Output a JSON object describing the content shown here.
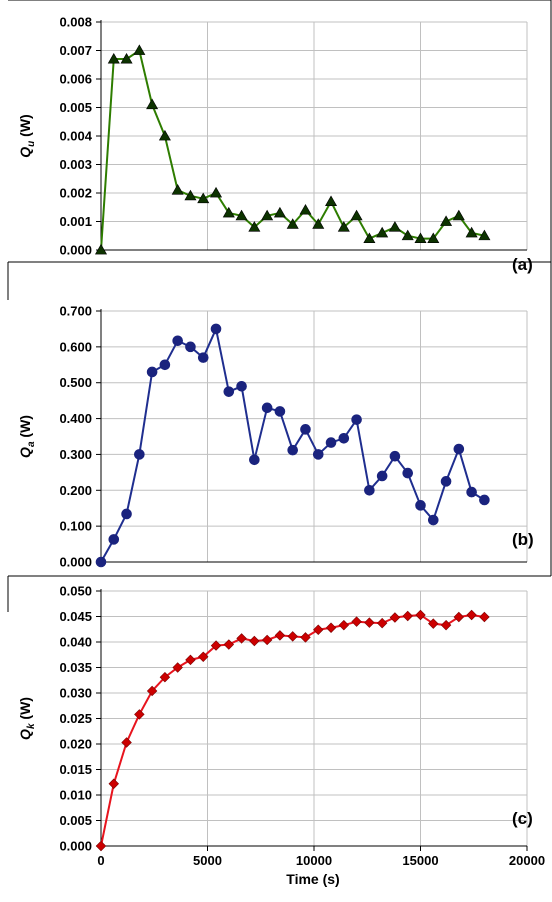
{
  "chart_data": [
    {
      "type": "line",
      "panel_label": "(a)",
      "ylabel": {
        "symbol": "Q",
        "subscript": "u",
        "unit": " (W)"
      },
      "xlabel": "",
      "ylim": [
        0,
        0.008
      ],
      "xlim": [
        0,
        20000
      ],
      "yticks": [
        "0.000",
        "0.001",
        "0.002",
        "0.003",
        "0.004",
        "0.005",
        "0.006",
        "0.007",
        "0.008"
      ],
      "grid": true,
      "marker": "triangle",
      "color": "#2e7d00",
      "marker_color": "#0d3300",
      "x": [
        0,
        600,
        1200,
        1800,
        2400,
        3000,
        3600,
        4200,
        4800,
        5400,
        6000,
        6600,
        7200,
        7800,
        8400,
        9000,
        9600,
        10200,
        10800,
        11400,
        12000,
        12600,
        13200,
        13800,
        14400,
        15000,
        15600,
        16200,
        16800,
        17400,
        18000
      ],
      "values": [
        0.0,
        0.0067,
        0.0067,
        0.007,
        0.0051,
        0.004,
        0.0021,
        0.0019,
        0.0018,
        0.002,
        0.0013,
        0.0012,
        0.0008,
        0.0012,
        0.0013,
        0.0009,
        0.0014,
        0.0009,
        0.0017,
        0.0008,
        0.0012,
        0.0004,
        0.0006,
        0.0008,
        0.0005,
        0.0004,
        0.0004,
        0.001,
        0.0012,
        0.0006,
        0.0005
      ]
    },
    {
      "type": "line",
      "panel_label": "(b)",
      "ylabel": {
        "symbol": "Q",
        "subscript": "a",
        "unit": " (W)"
      },
      "xlabel": "",
      "ylim": [
        0,
        0.7
      ],
      "xlim": [
        0,
        20000
      ],
      "yticks": [
        "0.000",
        "0.100",
        "0.200",
        "0.300",
        "0.400",
        "0.500",
        "0.600",
        "0.700"
      ],
      "grid": true,
      "marker": "circle",
      "color": "#1f2e8f",
      "marker_color": "#1a237e",
      "x": [
        0,
        600,
        1200,
        1800,
        2400,
        3000,
        3600,
        4200,
        4800,
        5400,
        6000,
        6600,
        7200,
        7800,
        8400,
        9000,
        9600,
        10200,
        10800,
        11400,
        12000,
        12600,
        13200,
        13800,
        14400,
        15000,
        15600,
        16200,
        16800,
        17400,
        18000
      ],
      "values": [
        0.0,
        0.063,
        0.134,
        0.3,
        0.53,
        0.55,
        0.617,
        0.6,
        0.57,
        0.65,
        0.475,
        0.49,
        0.285,
        0.43,
        0.42,
        0.312,
        0.37,
        0.3,
        0.333,
        0.345,
        0.397,
        0.2,
        0.24,
        0.295,
        0.248,
        0.158,
        0.117,
        0.225,
        0.315,
        0.195,
        0.173
      ]
    },
    {
      "type": "line",
      "panel_label": "(c)",
      "ylabel": {
        "symbol": "Q",
        "subscript": "k",
        "unit": " (W)"
      },
      "xlabel": "Time (s)",
      "ylim": [
        0,
        0.05
      ],
      "xlim": [
        0,
        20000
      ],
      "xticks": [
        "0",
        "5000",
        "10000",
        "15000",
        "20000"
      ],
      "yticks": [
        "0.000",
        "0.005",
        "0.010",
        "0.015",
        "0.020",
        "0.025",
        "0.030",
        "0.035",
        "0.040",
        "0.045",
        "0.050"
      ],
      "grid": true,
      "marker": "diamond",
      "color": "#e8141e",
      "marker_color": "#cc0000",
      "x": [
        0,
        600,
        1200,
        1800,
        2400,
        3000,
        3600,
        4200,
        4800,
        5400,
        6000,
        6600,
        7200,
        7800,
        8400,
        9000,
        9600,
        10200,
        10800,
        11400,
        12000,
        12600,
        13200,
        13800,
        14400,
        15000,
        15600,
        16200,
        16800,
        17400,
        18000
      ],
      "values": [
        0.0,
        0.0122,
        0.0203,
        0.0258,
        0.0304,
        0.0331,
        0.035,
        0.0365,
        0.0371,
        0.0393,
        0.0395,
        0.0407,
        0.0402,
        0.0404,
        0.0413,
        0.0411,
        0.0409,
        0.0424,
        0.0428,
        0.0433,
        0.044,
        0.0438,
        0.0437,
        0.0448,
        0.0451,
        0.0453,
        0.0436,
        0.0433,
        0.0449,
        0.0453,
        0.0449
      ]
    }
  ]
}
